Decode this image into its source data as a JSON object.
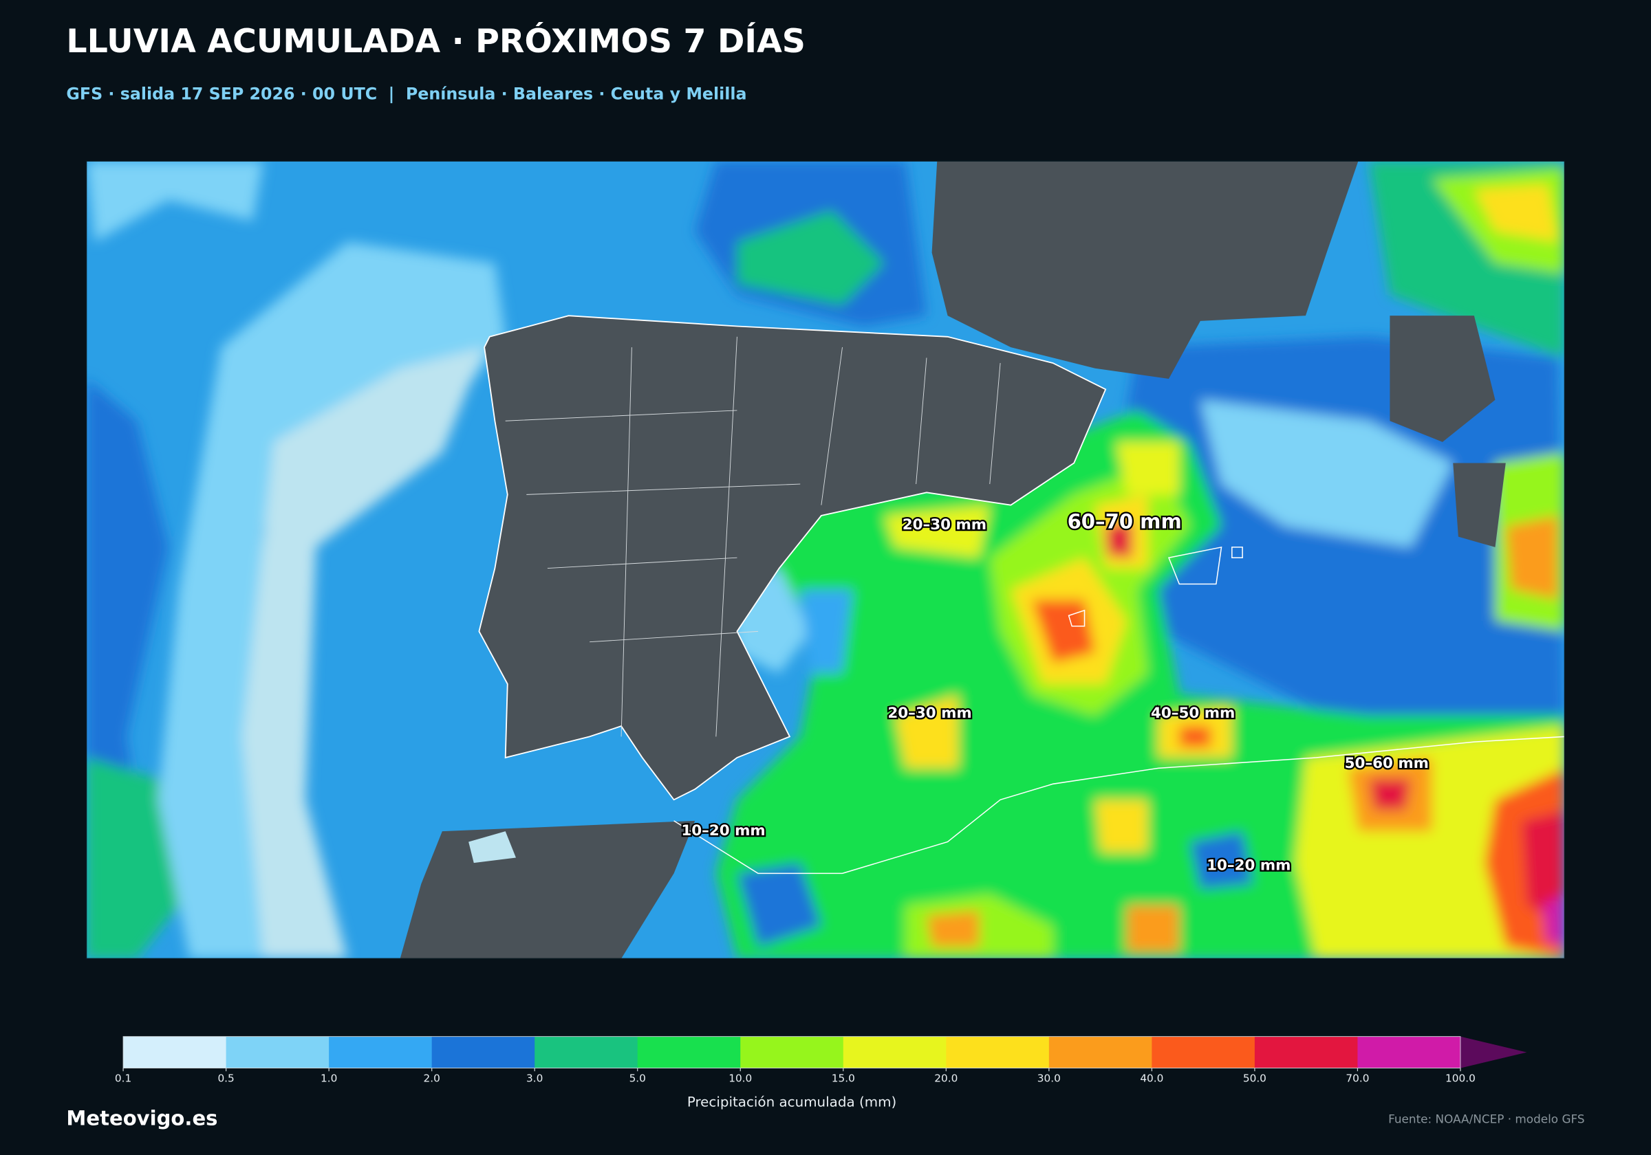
{
  "header": {
    "title": "LLUVIA ACUMULADA · PRÓXIMOS 7 DÍAS",
    "subtitle": "GFS · salida 17 SEP 2026 · 00 UTC  |  Península · Baleares · Ceuta y Melilla"
  },
  "map": {
    "annotations": [
      "20–30 mm",
      "60–70 mm",
      "20–30 mm",
      "40–50 mm",
      "50–60 mm",
      "10–20 mm",
      "10–20 mm"
    ]
  },
  "colorbar": {
    "label": "Precipitación acumulada (mm)",
    "ticks": [
      {
        "value": 0.1,
        "label": "0.1"
      },
      {
        "value": 0.5,
        "label": "0.5"
      },
      {
        "value": 1,
        "label": "1.0"
      },
      {
        "value": 2,
        "label": "2.0"
      },
      {
        "value": 3,
        "label": "3.0"
      },
      {
        "value": 5,
        "label": "5.0"
      },
      {
        "value": 10,
        "label": "10.0"
      },
      {
        "value": 15,
        "label": "15.0"
      },
      {
        "value": 20,
        "label": "20.0"
      },
      {
        "value": 30,
        "label": "30.0"
      },
      {
        "value": 40,
        "label": "40.0"
      },
      {
        "value": 50,
        "label": "50.0"
      },
      {
        "value": 70,
        "label": "70.0"
      },
      {
        "value": 100,
        "label": "100.0"
      }
    ],
    "colors": [
      "#d4effc",
      "#7ed3f7",
      "#34a8f3",
      "#1b74d8",
      "#19c37f",
      "#18e04e",
      "#96f51c",
      "#e7f51e",
      "#fde01c",
      "#fb9c1c",
      "#fb5a1c",
      "#e3163f",
      "#d01ba8"
    ],
    "extend_color": "#5c0a5c"
  },
  "footer": {
    "brand": "Meteovigo.es",
    "source": "Fuente: NOAA/NCEP · modelo GFS"
  }
}
